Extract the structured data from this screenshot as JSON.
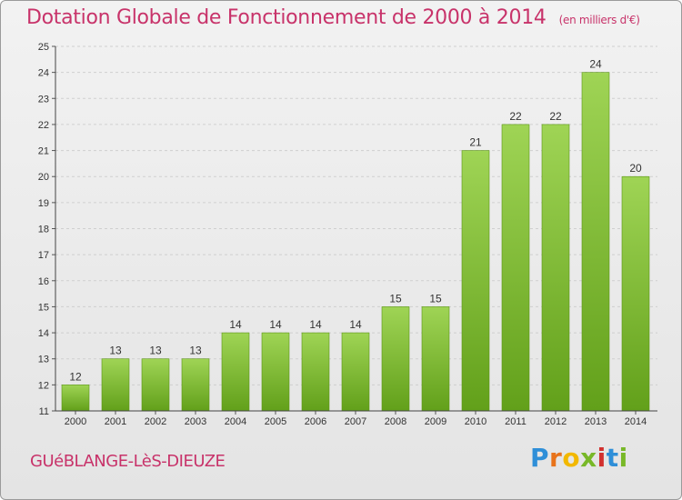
{
  "header": {
    "title": "Dotation Globale de Fonctionnement de 2000 à 2014",
    "unit": "(en milliers d'€)"
  },
  "footer": {
    "commune": "GUéBLANGE-LèS-DIEUZE",
    "logo_letters": [
      "P",
      "r",
      "o",
      "x",
      "i",
      "t",
      "i"
    ]
  },
  "colors": {
    "title": "#c8336a",
    "bar_top": "#9fd455",
    "bar_bottom": "#62a01a"
  },
  "chart_data": {
    "type": "bar",
    "categories": [
      "2000",
      "2001",
      "2002",
      "2003",
      "2004",
      "2005",
      "2006",
      "2007",
      "2008",
      "2009",
      "2010",
      "2011",
      "2012",
      "2013",
      "2014"
    ],
    "values": [
      12,
      13,
      13,
      13,
      14,
      14,
      14,
      14,
      15,
      15,
      21,
      22,
      22,
      24,
      20
    ],
    "title": "Dotation Globale de Fonctionnement de 2000 à 2014",
    "ylim": [
      11,
      25
    ],
    "yticks": [
      11,
      12,
      13,
      14,
      15,
      16,
      17,
      18,
      19,
      20,
      21,
      22,
      23,
      24,
      25
    ],
    "grid": true
  }
}
